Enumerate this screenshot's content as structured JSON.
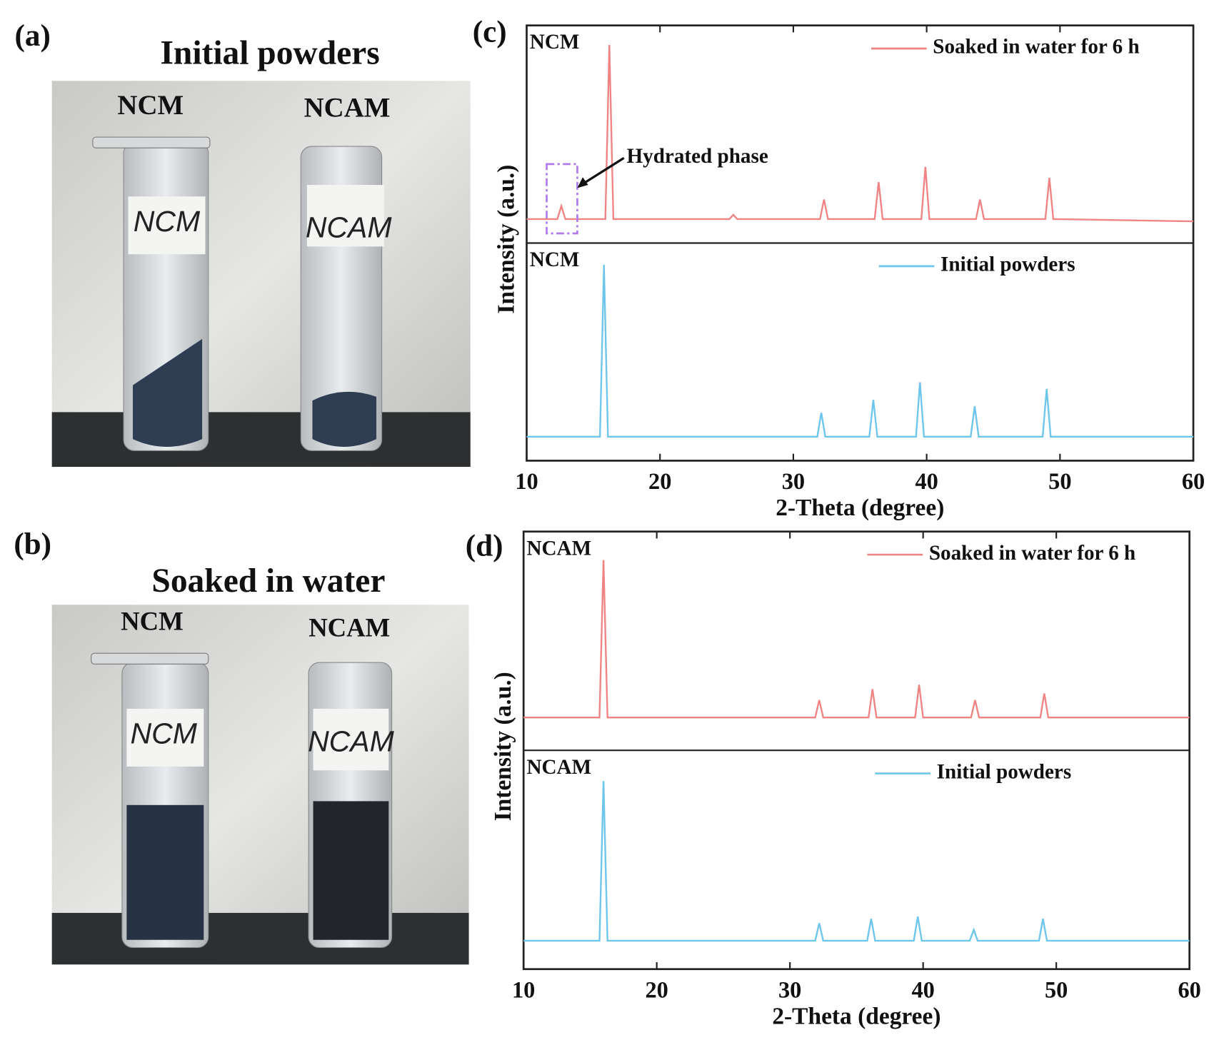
{
  "figure": {
    "panels": [
      {
        "label": "(a)",
        "title": "Initial powders",
        "samples": [
          "NCM",
          "NCAM"
        ],
        "tube_labels": [
          "NCM",
          "NCAM"
        ]
      },
      {
        "label": "(b)",
        "title": "Soaked in water",
        "samples": [
          "NCM",
          "NCAM"
        ],
        "tube_labels": [
          "NCM",
          "NCAM"
        ]
      }
    ]
  },
  "chart_data": [
    {
      "type": "line",
      "panel_label": "(c)",
      "xlabel": "2-Theta (degree)",
      "ylabel": "Intensity (a.u.)",
      "xlim": [
        10,
        60
      ],
      "xticks": [
        10,
        20,
        30,
        40,
        50,
        60
      ],
      "ylim": [
        0,
        100
      ],
      "annotation": "Hydrated phase",
      "series": [
        {
          "name": "Soaked in water for 6 h",
          "sample": "NCM",
          "color": "#f08484",
          "x": [
            10,
            12.3,
            12.6,
            12.9,
            15.9,
            16.2,
            16.5,
            25.2,
            25.5,
            25.8,
            32.0,
            32.3,
            32.6,
            36.1,
            36.4,
            36.7,
            39.6,
            39.9,
            40.2,
            43.7,
            44.0,
            44.3,
            48.9,
            49.2,
            49.5,
            60
          ],
          "values": [
            11,
            11,
            17,
            11,
            11,
            91,
            11,
            11,
            13,
            11,
            11,
            20,
            11,
            11,
            28,
            11,
            11,
            35,
            11,
            11,
            20,
            11,
            11,
            30,
            11,
            10
          ]
        },
        {
          "name": "Initial powders",
          "sample": "NCM",
          "color": "#6ec6ea",
          "x": [
            10,
            15.5,
            15.8,
            16.1,
            31.8,
            32.1,
            32.4,
            35.7,
            36.0,
            36.3,
            39.2,
            39.5,
            39.8,
            43.3,
            43.6,
            43.9,
            48.7,
            49.0,
            49.3,
            60
          ],
          "values": [
            11,
            11,
            90,
            11,
            11,
            22,
            11,
            11,
            28,
            11,
            11,
            36,
            11,
            11,
            25,
            11,
            11,
            33,
            11,
            11
          ]
        }
      ]
    },
    {
      "type": "line",
      "panel_label": "(d)",
      "xlabel": "2-Theta (degree)",
      "ylabel": "Intensity (a.u.)",
      "xlim": [
        10,
        60
      ],
      "xticks": [
        10,
        20,
        30,
        40,
        50,
        60
      ],
      "ylim": [
        0,
        100
      ],
      "series": [
        {
          "name": "Soaked in water for 6 h",
          "sample": "NCAM",
          "color": "#f08484",
          "x": [
            10,
            15.7,
            16.0,
            16.3,
            31.9,
            32.2,
            32.5,
            35.9,
            36.2,
            36.5,
            39.4,
            39.7,
            40.0,
            43.6,
            43.9,
            44.2,
            48.8,
            49.1,
            49.4,
            60
          ],
          "values": [
            15,
            15,
            87,
            15,
            15,
            23,
            15,
            15,
            28,
            15,
            15,
            30,
            15,
            15,
            23,
            15,
            15,
            26,
            15,
            15
          ]
        },
        {
          "name": "Initial powders",
          "sample": "NCAM",
          "color": "#6ec6ea",
          "x": [
            10,
            15.7,
            16.0,
            16.3,
            31.9,
            32.2,
            32.5,
            35.8,
            36.1,
            36.4,
            39.3,
            39.6,
            39.9,
            43.5,
            43.8,
            44.1,
            48.7,
            49.0,
            49.3,
            60
          ],
          "values": [
            13,
            13,
            86,
            13,
            13,
            21,
            13,
            13,
            23,
            13,
            13,
            24,
            13,
            13,
            18,
            13,
            13,
            23,
            13,
            13
          ]
        }
      ]
    }
  ]
}
